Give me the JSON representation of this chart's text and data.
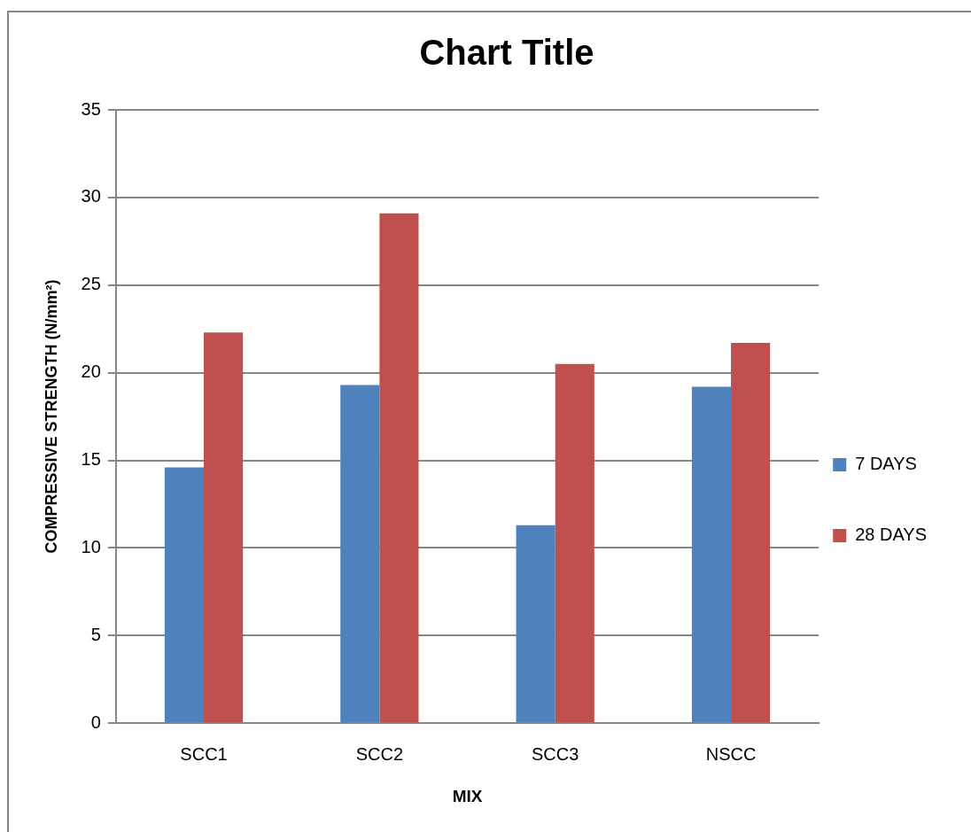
{
  "chart_data": {
    "type": "bar",
    "title": "Chart Title",
    "xlabel": "MIX",
    "ylabel": "COMPRESSIVE STRENGTH (N/mm²)",
    "categories": [
      "SCC1",
      "SCC2",
      "SCC3",
      "NSCC"
    ],
    "series": [
      {
        "name": "7 DAYS",
        "color": "#4f81bd",
        "values": [
          14.6,
          19.3,
          11.3,
          19.2
        ]
      },
      {
        "name": "28 DAYS",
        "color": "#c0504d",
        "values": [
          22.3,
          29.1,
          20.5,
          21.7
        ]
      }
    ],
    "ylim": [
      0,
      35
    ],
    "yticks": [
      0,
      5,
      10,
      15,
      20,
      25,
      30,
      35
    ],
    "grid": "y",
    "legend": "right"
  }
}
